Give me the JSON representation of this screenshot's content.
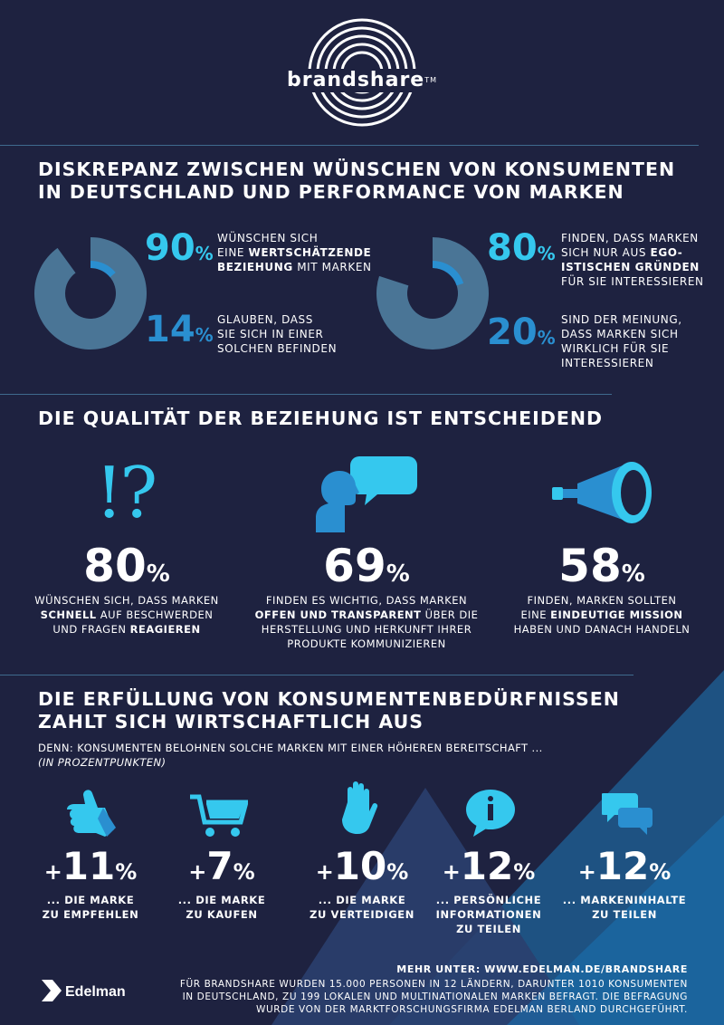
{
  "brand": {
    "logo_text": "brandshare",
    "tm": "TM"
  },
  "section1": {
    "title_line1": "DISKREPANZ ZWISCHEN WÜNSCHEN VON KONSUMENTEN",
    "title_line2": "IN DEUTSCHLAND UND PERFORMANCE VON MARKEN",
    "left": {
      "pct_a": "90",
      "pct_a_value": 90,
      "text_a": {
        "l1": "WÜNSCHEN SICH",
        "l2_pre": "EINE ",
        "l2_bold": "WERTSCHÄTZENDE",
        "l3_bold": "BEZIEHUNG",
        "l3_post": " MIT MARKEN"
      },
      "pct_b": "14",
      "pct_b_value": 14,
      "text_b": {
        "l1": "GLAUBEN, DASS",
        "l2": "SIE SICH IN EINER",
        "l3": "SOLCHEN BEFINDEN"
      }
    },
    "right": {
      "pct_a": "80",
      "pct_a_value": 80,
      "text_a": {
        "l1": "FINDEN, DASS MARKEN",
        "l2_pre": "SICH NUR AUS ",
        "l2_bold": "EGO-",
        "l3_bold": "ISTISCHEN GRÜNDEN",
        "l4": "FÜR SIE INTERESSIEREN"
      },
      "pct_b": "20",
      "pct_b_value": 20,
      "text_b": {
        "l1": "SIND DER MEINUNG,",
        "l2": "DASS MARKEN SICH",
        "l3": "WIRKLICH FÜR SIE",
        "l4": "INTERESSIEREN"
      }
    },
    "unit": "%"
  },
  "section2": {
    "title": "DIE QUALITÄT DER BEZIEHUNG IST ENTSCHEIDEND",
    "icon_symbol": "!?",
    "items": [
      {
        "icon": "question-exclamation-icon",
        "pct": "80",
        "l1": "WÜNSCHEN SICH, DASS MARKEN",
        "l2_bold": "SCHNELL",
        "l2_post": " AUF BESCHWERDEN",
        "l3_pre": "UND FRAGEN ",
        "l3_bold": "REAGIEREN"
      },
      {
        "icon": "speaking-head-icon",
        "pct": "69",
        "l1": "FINDEN ES WICHTIG, DASS MARKEN",
        "l2_bold": "OFFEN UND TRANSPARENT",
        "l2_post": " ÜBER DIE",
        "l3": "HERSTELLUNG UND HERKUNFT IHRER",
        "l4": "PRODUKTE KOMMUNIZIEREN"
      },
      {
        "icon": "telescope-icon",
        "pct": "58",
        "l1": "FINDEN, MARKEN SOLLTEN",
        "l2_pre": "EINE ",
        "l2_bold": "EINDEUTIGE MISSION",
        "l3": "HABEN UND DANACH HANDELN"
      }
    ]
  },
  "section3": {
    "title_line1": "DIE ERFÜLLUNG VON KONSUMENTENBEDÜRFNISSEN",
    "title_line2": "ZAHLT SICH WIRTSCHAFTLICH AUS",
    "sub1": "DENN: KONSUMENTEN BELOHNEN SOLCHE MARKEN MIT EINER HÖHEREN BEREITSCHAFT ...",
    "sub2": "(IN PROZENTPUNKTEN)",
    "items": [
      {
        "icon": "thumbs-up-icon",
        "value": "11",
        "l1": "... DIE MARKE",
        "l2": "ZU EMPFEHLEN"
      },
      {
        "icon": "shopping-cart-icon",
        "value": "7",
        "l1": "... DIE MARKE",
        "l2": "ZU KAUFEN"
      },
      {
        "icon": "raised-hand-icon",
        "value": "10",
        "l1": "... DIE MARKE",
        "l2": "ZU VERTEIDIGEN"
      },
      {
        "icon": "info-bubble-icon",
        "value": "12",
        "l1": "... PERSÖNLICHE",
        "l2": "INFORMATIONEN",
        "l3": "ZU TEILEN"
      },
      {
        "icon": "chat-bubbles-icon",
        "value": "12",
        "l1": "... MARKENINHALTE",
        "l2": "ZU TEILEN"
      }
    ],
    "plus": "+"
  },
  "footer": {
    "more": "MEHR UNTER: WWW.EDELMAN.DE/BRANDSHARE",
    "l1": "FÜR BRANDSHARE WURDEN 15.000 PERSONEN IN 12 LÄNDERN, DARUNTER 1010 KONSUMENTEN",
    "l2": "IN DEUTSCHLAND, ZU 199 LOKALEN UND MULTINATIONALEN MARKEN BEFRAGT. DIE BEFRAGUNG",
    "l3": "WURDE VON DER MARKTFORSCHUNGSFIRMA EDELMAN BERLAND DURCHGEFÜHRT.",
    "edelman": "Edelman"
  },
  "colors": {
    "background": "#1e2240",
    "accent": "#35c8ee",
    "accent_dark": "#2a8fd0",
    "triangle": "#1f5a8e"
  }
}
